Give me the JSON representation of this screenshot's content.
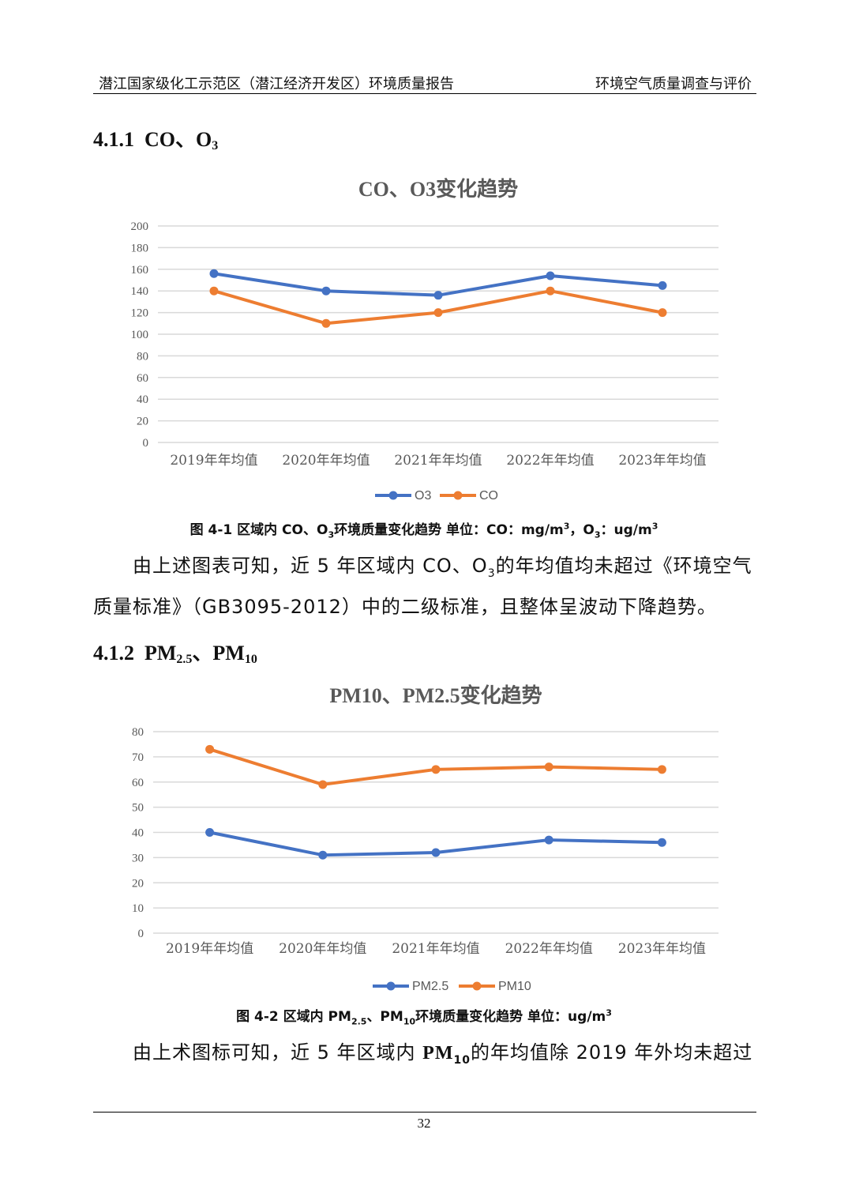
{
  "header": {
    "left": "潜江国家级化工示范区（潜江经济开发区）环境质量报告",
    "right": "环境空气质量调查与评价"
  },
  "section1": {
    "number": "4.1.1",
    "title_a": "CO、O",
    "title_sub": "3"
  },
  "section2": {
    "number": "4.1.2",
    "title_a": "PM",
    "sub_a": "2.5",
    "title_b": "、PM",
    "sub_b": "10"
  },
  "caption1": {
    "prefix": "图 4-1  区域内 CO、O",
    "sub": "3",
    "middle": "环境质量变化趋势  单位：CO：mg/m",
    "sup": "3",
    "mid2": "，O",
    "sub2": "3",
    "suffix": "：ug/m",
    "sup2": "3"
  },
  "caption2": {
    "prefix": "图 4-2  区域内 PM",
    "sub": "2.5",
    "mid": "、PM",
    "sub2": "10",
    "suffix": "环境质量变化趋势  单位：ug/m",
    "sup": "3"
  },
  "para1": {
    "line1_a": "由上述图表可知，近 5 年区域内 CO、O",
    "line1_sub": "3",
    "line1_b": "的年均值均未超过《环境空气",
    "line2": "质量标准》（GB3095-2012）中的二级标准，且整体呈波动下降趋势。"
  },
  "para2": {
    "a": "由上术图标可知，近 5 年区域内 ",
    "bold": "PM",
    "sub": "10",
    "b": "的年均值除 2019 年外均未超过"
  },
  "page_number": "32",
  "colors": {
    "blue": "#4472C4",
    "orange": "#ED7D31",
    "grid": "#D9D9D9",
    "axis_text": "#595959"
  },
  "chart_data": [
    {
      "type": "line",
      "title": "CO、O3变化趋势",
      "categories": [
        "2019年年均值",
        "2020年年均值",
        "2021年年均值",
        "2022年年均值",
        "2023年年均值"
      ],
      "series": [
        {
          "name": "O3",
          "color": "#4472C4",
          "values": [
            156,
            140,
            136,
            154,
            145
          ]
        },
        {
          "name": "CO",
          "color": "#ED7D31",
          "values": [
            140,
            110,
            120,
            140,
            120
          ]
        }
      ],
      "ylim": [
        0,
        200
      ],
      "yticks": [
        0,
        20,
        40,
        60,
        80,
        100,
        120,
        140,
        160,
        180,
        200
      ],
      "grid": true,
      "legend": "bottom"
    },
    {
      "type": "line",
      "title": "PM10、PM2.5变化趋势",
      "categories": [
        "2019年年均值",
        "2020年年均值",
        "2021年年均值",
        "2022年年均值",
        "2023年年均值"
      ],
      "series": [
        {
          "name": "PM2.5",
          "color": "#4472C4",
          "values": [
            40,
            31,
            32,
            37,
            36
          ]
        },
        {
          "name": "PM10",
          "color": "#ED7D31",
          "values": [
            73,
            59,
            65,
            66,
            65
          ]
        }
      ],
      "ylim": [
        0,
        80
      ],
      "yticks": [
        0,
        10,
        20,
        30,
        40,
        50,
        60,
        70,
        80
      ],
      "grid": true,
      "legend": "bottom"
    }
  ]
}
